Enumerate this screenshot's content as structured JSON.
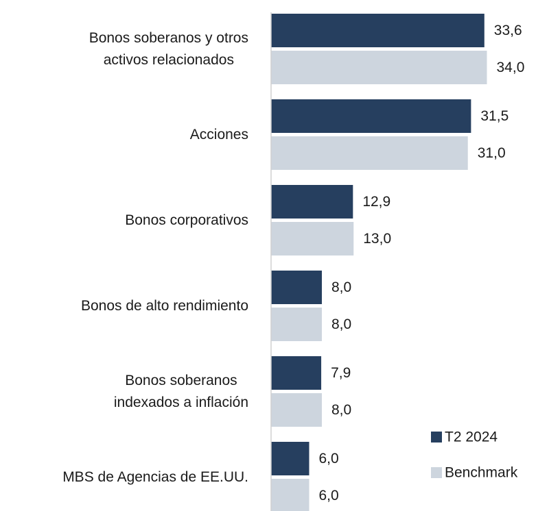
{
  "chart_data": {
    "type": "bar",
    "orientation": "horizontal",
    "categories": [
      "Bonos soberanos y otros\nactivos relacionados",
      "Acciones",
      "Bonos corporativos",
      "Bonos de alto rendimiento",
      "Bonos soberanos\nindexados a inflación",
      "MBS de Agencias de EE.UU."
    ],
    "series": [
      {
        "name": "T2 2024",
        "color": "#263f5f",
        "values": [
          33.6,
          31.5,
          12.9,
          8.0,
          7.9,
          6.0
        ],
        "value_labels": [
          "33,6",
          "31,5",
          "12,9",
          "8,0",
          "7,9",
          "6,0"
        ]
      },
      {
        "name": "Benchmark",
        "color": "#cdd5de",
        "values": [
          34.0,
          31.0,
          13.0,
          8.0,
          8.0,
          6.0
        ],
        "value_labels": [
          "34,0",
          "31,0",
          "13,0",
          "8,0",
          "8,0",
          "6,0"
        ]
      }
    ],
    "xlim": [
      0,
      40
    ],
    "legend": "lower right",
    "grid": false
  }
}
